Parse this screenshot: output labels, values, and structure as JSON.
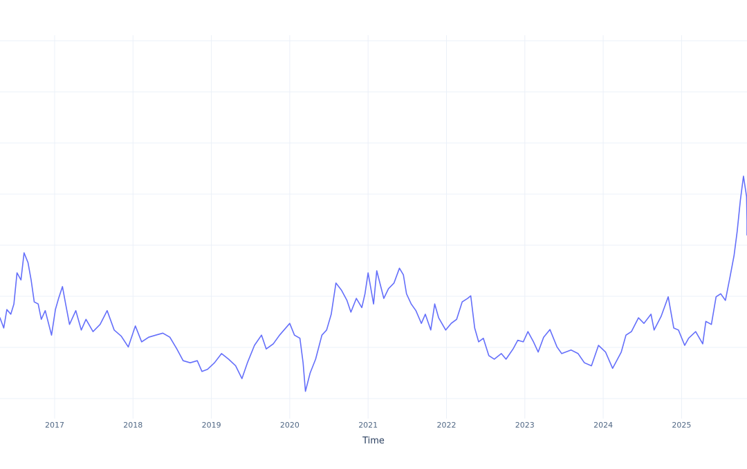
{
  "chart_data": {
    "type": "line",
    "title": "",
    "xlabel": "Time",
    "ylabel": "",
    "x_tick_labels": [
      "2017",
      "2018",
      "2019",
      "2020",
      "2021",
      "2022",
      "2023",
      "2024",
      "2025"
    ],
    "x_tick_values": [
      2017,
      2018,
      2019,
      2020,
      2021,
      2022,
      2023,
      2024,
      2025
    ],
    "xlim": [
      2016.3,
      2025.83
    ],
    "y_units_note": "y-axis labels not visible (cropped); values expressed in gridline units above the lowest visible gridline",
    "ylim": [
      -0.4,
      7.2
    ],
    "y_gridlines": [
      0,
      1,
      2,
      3,
      4,
      5,
      6,
      7
    ],
    "grid": true,
    "legend": null,
    "series": [
      {
        "name": "series",
        "color": "#636efa",
        "x": [
          2016.3,
          2016.35,
          2016.39,
          2016.44,
          2016.48,
          2016.52,
          2016.57,
          2016.61,
          2016.66,
          2016.7,
          2016.74,
          2016.79,
          2016.83,
          2016.88,
          2016.96,
          2017.01,
          2017.05,
          2017.1,
          2017.14,
          2017.19,
          2017.27,
          2017.34,
          2017.4,
          2017.49,
          2017.58,
          2017.67,
          2017.76,
          2017.85,
          2017.94,
          2018.03,
          2018.11,
          2018.2,
          2018.29,
          2018.38,
          2018.47,
          2018.56,
          2018.64,
          2018.73,
          2018.82,
          2018.88,
          2018.95,
          2019.04,
          2019.13,
          2019.22,
          2019.31,
          2019.39,
          2019.46,
          2019.55,
          2019.64,
          2019.7,
          2019.79,
          2019.87,
          2020.0,
          2020.06,
          2020.13,
          2020.17,
          2020.2,
          2020.26,
          2020.33,
          2020.41,
          2020.47,
          2020.53,
          2020.59,
          2020.66,
          2020.73,
          2020.78,
          2020.85,
          2020.92,
          2020.96,
          2021.0,
          2021.07,
          2021.11,
          2021.2,
          2021.26,
          2021.33,
          2021.4,
          2021.45,
          2021.49,
          2021.55,
          2021.61,
          2021.68,
          2021.73,
          2021.8,
          2021.85,
          2021.9,
          2021.99,
          2022.06,
          2022.13,
          2022.2,
          2022.27,
          2022.31,
          2022.36,
          2022.41,
          2022.47,
          2022.54,
          2022.61,
          2022.7,
          2022.76,
          2022.85,
          2022.91,
          2022.98,
          2023.04,
          2023.11,
          2023.17,
          2023.24,
          2023.32,
          2023.41,
          2023.47,
          2023.59,
          2023.68,
          2023.76,
          2023.85,
          2023.94,
          2024.03,
          2024.12,
          2024.23,
          2024.29,
          2024.36,
          2024.45,
          2024.52,
          2024.61,
          2024.65,
          2024.74,
          2024.83,
          2024.9,
          2024.96,
          2025.04,
          2025.09,
          2025.18,
          2025.27,
          2025.31,
          2025.38,
          2025.44,
          2025.5,
          2025.56,
          2025.62,
          2025.67,
          2025.71,
          2025.75,
          2025.79,
          2025.83,
          2025.86,
          2025.89
        ],
        "y": [
          1.58,
          1.38,
          1.74,
          1.65,
          1.85,
          2.46,
          2.32,
          2.85,
          2.66,
          2.32,
          1.89,
          1.85,
          1.55,
          1.72,
          1.24,
          1.74,
          1.96,
          2.19,
          1.85,
          1.45,
          1.72,
          1.34,
          1.55,
          1.31,
          1.45,
          1.72,
          1.34,
          1.22,
          1.01,
          1.42,
          1.11,
          1.2,
          1.24,
          1.28,
          1.2,
          0.97,
          0.74,
          0.7,
          0.74,
          0.53,
          0.57,
          0.7,
          0.88,
          0.77,
          0.64,
          0.39,
          0.7,
          1.04,
          1.24,
          0.97,
          1.07,
          1.24,
          1.47,
          1.24,
          1.18,
          0.7,
          0.14,
          0.5,
          0.77,
          1.24,
          1.34,
          1.65,
          2.26,
          2.12,
          1.92,
          1.69,
          1.96,
          1.78,
          2.05,
          2.46,
          1.85,
          2.5,
          1.96,
          2.15,
          2.26,
          2.55,
          2.42,
          2.05,
          1.85,
          1.72,
          1.47,
          1.65,
          1.34,
          1.85,
          1.58,
          1.34,
          1.47,
          1.55,
          1.89,
          1.96,
          2.01,
          1.38,
          1.11,
          1.18,
          0.84,
          0.77,
          0.88,
          0.77,
          0.97,
          1.14,
          1.11,
          1.31,
          1.11,
          0.91,
          1.2,
          1.35,
          1.01,
          0.88,
          0.95,
          0.88,
          0.7,
          0.64,
          1.04,
          0.91,
          0.59,
          0.91,
          1.24,
          1.31,
          1.58,
          1.47,
          1.65,
          1.34,
          1.61,
          1.99,
          1.38,
          1.34,
          1.04,
          1.18,
          1.31,
          1.07,
          1.51,
          1.45,
          1.99,
          2.05,
          1.92,
          2.39,
          2.8,
          3.27,
          3.88,
          4.35,
          3.95,
          3.47,
          3.2
        ]
      }
    ]
  },
  "plot": {
    "x_axis_title": "Time",
    "colors": {
      "line": "#636efa",
      "grid": "#ebf0f8",
      "tick_text": "#506784",
      "axis_title": "#2a3f5f",
      "background": "#ffffff"
    }
  }
}
